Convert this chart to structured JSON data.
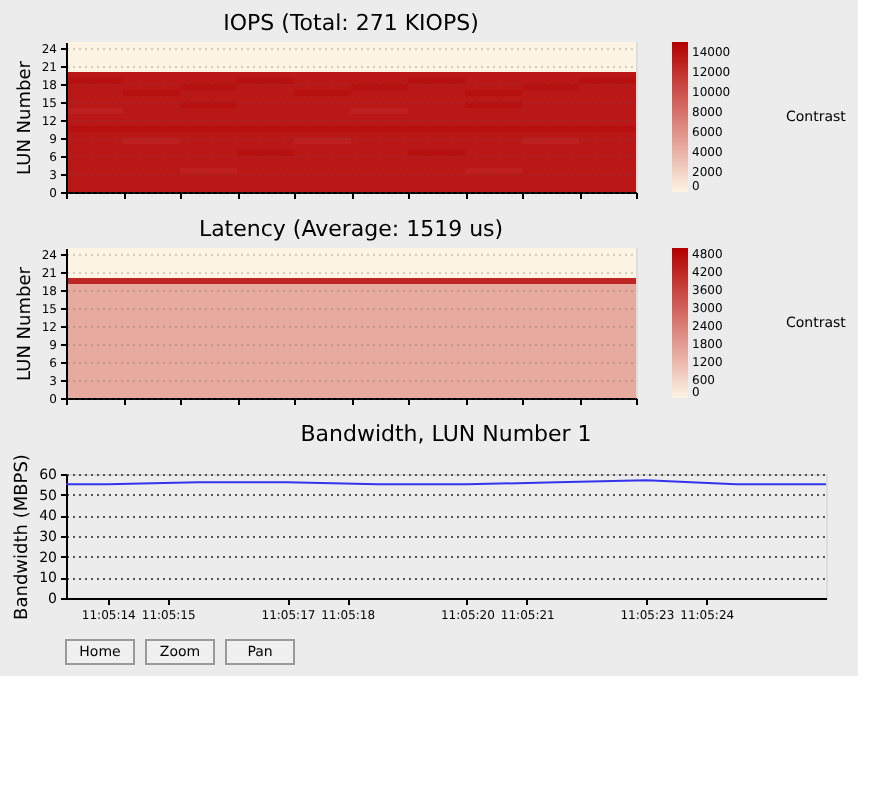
{
  "chart_data": [
    {
      "type": "heatmap",
      "title": "IOPS (Total: 271 KIOPS)",
      "ylabel": "LUN Number",
      "categories": [
        null,
        null,
        null,
        null,
        null,
        null,
        null,
        null,
        null,
        null
      ],
      "ylim": [
        0,
        25
      ],
      "yticks": [
        0,
        3,
        6,
        9,
        12,
        15,
        18,
        21,
        24
      ],
      "clim": [
        0,
        15000
      ],
      "cticks": [
        0,
        2000,
        4000,
        6000,
        8000,
        10000,
        12000,
        14000
      ],
      "grid": "y",
      "tick_labels": "y",
      "annotations": [
        "Contrast"
      ],
      "cells": [
        [
          0,
          0,
          0,
          0,
          0,
          0,
          0,
          0,
          0,
          0
        ],
        [
          0,
          0,
          0,
          0,
          0,
          0,
          0,
          0,
          0,
          0
        ],
        [
          0,
          0,
          0,
          0,
          0,
          0,
          0,
          0,
          0,
          0
        ],
        [
          0,
          0,
          0,
          0,
          0,
          0,
          0,
          0,
          0,
          0
        ],
        [
          0,
          0,
          0,
          0,
          0,
          0,
          0,
          0,
          0,
          0
        ],
        [
          13500,
          13500,
          13500,
          13500,
          13500,
          13500,
          13500,
          13500,
          13500,
          13500
        ],
        [
          14000,
          13500,
          13500,
          14000,
          13500,
          13500,
          14000,
          13500,
          13500,
          14000
        ],
        [
          13500,
          13500,
          14000,
          13500,
          13500,
          14000,
          13500,
          13500,
          14000,
          13500
        ],
        [
          13500,
          14000,
          13500,
          13500,
          14000,
          13500,
          13500,
          14000,
          13500,
          13500
        ],
        [
          13500,
          13500,
          13500,
          13500,
          13500,
          13500,
          13500,
          13500,
          13500,
          13500
        ],
        [
          13500,
          13500,
          14000,
          13500,
          13500,
          13500,
          13500,
          14000,
          13500,
          13500
        ],
        [
          13000,
          13500,
          13500,
          13500,
          13500,
          13000,
          13500,
          13500,
          13500,
          13500
        ],
        [
          13500,
          13500,
          13500,
          13500,
          13500,
          13500,
          13500,
          13500,
          13500,
          13500
        ],
        [
          13500,
          13500,
          13500,
          13500,
          13500,
          13500,
          13500,
          13500,
          13500,
          13500
        ],
        [
          14000,
          14000,
          14000,
          14000,
          14000,
          14000,
          14000,
          14000,
          14000,
          14000
        ],
        [
          13500,
          13500,
          13500,
          13500,
          13500,
          13500,
          13500,
          13500,
          13500,
          13500
        ],
        [
          13500,
          13000,
          13500,
          13500,
          13000,
          13500,
          13500,
          13500,
          13000,
          13500
        ],
        [
          13500,
          13500,
          13500,
          13500,
          13500,
          13500,
          13500,
          13500,
          13500,
          13500
        ],
        [
          13500,
          13500,
          13500,
          14000,
          13500,
          13500,
          14000,
          13500,
          13500,
          13500
        ],
        [
          13500,
          13500,
          13500,
          13500,
          13500,
          13500,
          13500,
          13500,
          13500,
          13500
        ],
        [
          13500,
          13500,
          13500,
          13500,
          13500,
          13500,
          13500,
          13500,
          13500,
          13500
        ],
        [
          13500,
          13500,
          13000,
          13500,
          13500,
          13500,
          13500,
          13000,
          13500,
          13500
        ],
        [
          13500,
          13500,
          13500,
          13500,
          13500,
          13500,
          13500,
          13500,
          13500,
          13500
        ],
        [
          13500,
          13500,
          13500,
          13500,
          13500,
          13500,
          13500,
          13500,
          13500,
          13500
        ],
        [
          13500,
          13500,
          13500,
          13500,
          13500,
          13500,
          13500,
          13500,
          13500,
          13500
        ]
      ]
    },
    {
      "type": "heatmap",
      "title": "Latency (Average: 1519 us)",
      "ylabel": "LUN Number",
      "categories": [
        null,
        null,
        null,
        null,
        null,
        null,
        null,
        null,
        null,
        null
      ],
      "ylim": [
        0,
        25
      ],
      "yticks": [
        0,
        3,
        6,
        9,
        12,
        15,
        18,
        21,
        24
      ],
      "clim": [
        0,
        5000
      ],
      "cticks": [
        0,
        600,
        1200,
        1800,
        2400,
        3000,
        3600,
        4200,
        4800
      ],
      "grid": "y",
      "tick_labels": "y",
      "annotations": [
        "Contrast"
      ],
      "cells": [
        [
          0,
          0,
          0,
          0,
          0,
          0,
          0,
          0,
          0,
          0
        ],
        [
          0,
          0,
          0,
          0,
          0,
          0,
          0,
          0,
          0,
          0
        ],
        [
          0,
          0,
          0,
          0,
          0,
          0,
          0,
          0,
          0,
          0
        ],
        [
          0,
          0,
          0,
          0,
          0,
          0,
          0,
          0,
          0,
          0
        ],
        [
          0,
          0,
          0,
          0,
          0,
          0,
          0,
          0,
          0,
          0
        ],
        [
          4200,
          4200,
          4200,
          4200,
          4200,
          4200,
          4200,
          4200,
          4200,
          4200
        ],
        [
          1500,
          1500,
          1500,
          1500,
          1500,
          1500,
          1500,
          1500,
          1500,
          1500
        ],
        [
          1500,
          1500,
          1500,
          1500,
          1500,
          1500,
          1500,
          1500,
          1500,
          1500
        ],
        [
          1500,
          1500,
          1500,
          1500,
          1500,
          1500,
          1500,
          1500,
          1500,
          1500
        ],
        [
          1500,
          1500,
          1500,
          1500,
          1500,
          1500,
          1500,
          1500,
          1500,
          1500
        ],
        [
          1500,
          1500,
          1500,
          1500,
          1500,
          1500,
          1500,
          1500,
          1500,
          1500
        ],
        [
          1500,
          1500,
          1500,
          1500,
          1500,
          1500,
          1500,
          1500,
          1500,
          1500
        ],
        [
          1500,
          1500,
          1500,
          1500,
          1500,
          1500,
          1500,
          1500,
          1500,
          1500
        ],
        [
          1500,
          1500,
          1500,
          1500,
          1500,
          1500,
          1500,
          1500,
          1500,
          1500
        ],
        [
          1500,
          1500,
          1500,
          1500,
          1500,
          1500,
          1500,
          1500,
          1500,
          1500
        ],
        [
          1500,
          1500,
          1500,
          1500,
          1500,
          1500,
          1500,
          1500,
          1500,
          1500
        ],
        [
          1500,
          1500,
          1500,
          1500,
          1500,
          1500,
          1500,
          1500,
          1500,
          1500
        ],
        [
          1500,
          1500,
          1500,
          1500,
          1500,
          1500,
          1500,
          1500,
          1500,
          1500
        ],
        [
          1500,
          1500,
          1500,
          1500,
          1500,
          1500,
          1500,
          1500,
          1500,
          1500
        ],
        [
          1500,
          1500,
          1500,
          1500,
          1500,
          1500,
          1500,
          1500,
          1500,
          1500
        ],
        [
          1500,
          1500,
          1500,
          1500,
          1500,
          1500,
          1500,
          1500,
          1500,
          1500
        ],
        [
          1500,
          1500,
          1500,
          1500,
          1500,
          1500,
          1500,
          1500,
          1500,
          1500
        ],
        [
          1500,
          1500,
          1500,
          1500,
          1500,
          1500,
          1500,
          1500,
          1500,
          1500
        ],
        [
          1500,
          1500,
          1500,
          1500,
          1500,
          1500,
          1500,
          1500,
          1500,
          1500
        ],
        [
          1500,
          1500,
          1500,
          1500,
          1500,
          1500,
          1500,
          1500,
          1500,
          1500
        ]
      ]
    },
    {
      "type": "line",
      "title": "Bandwidth, LUN Number 1",
      "ylabel": "Bandwidth (MBPS)",
      "ylim": [
        0,
        60
      ],
      "yticks": [
        0,
        10,
        20,
        30,
        40,
        50,
        60
      ],
      "xlim": [
        11.087028,
        11.090556
      ],
      "xticks": [
        {
          "value": 11.087222,
          "label": "11:05:14"
        },
        {
          "value": 11.0875,
          "label": "11:05:15"
        },
        {
          "value": 11.088056,
          "label": "11:05:17"
        },
        {
          "value": 11.088333,
          "label": "11:05:18"
        },
        {
          "value": 11.088889,
          "label": "11:05:20"
        },
        {
          "value": 11.089167,
          "label": "11:05:21"
        },
        {
          "value": 11.089722,
          "label": "11:05:23"
        },
        {
          "value": 11.09,
          "label": "11:05:24"
        }
      ],
      "grid": "y",
      "line_style": "solid",
      "marker": "none",
      "x": [
        11.087028,
        11.087222,
        11.087639,
        11.088056,
        11.088472,
        11.088889,
        11.089306,
        11.089722,
        11.090139,
        11.090556
      ],
      "series": [
        {
          "color": "#3333ee",
          "values": [
            55,
            55,
            56,
            56,
            55,
            55,
            56,
            57,
            55,
            55
          ]
        }
      ]
    },
    {
      "type": "other",
      "annotations": [
        "Home",
        "Zoom",
        "Pan"
      ]
    }
  ]
}
